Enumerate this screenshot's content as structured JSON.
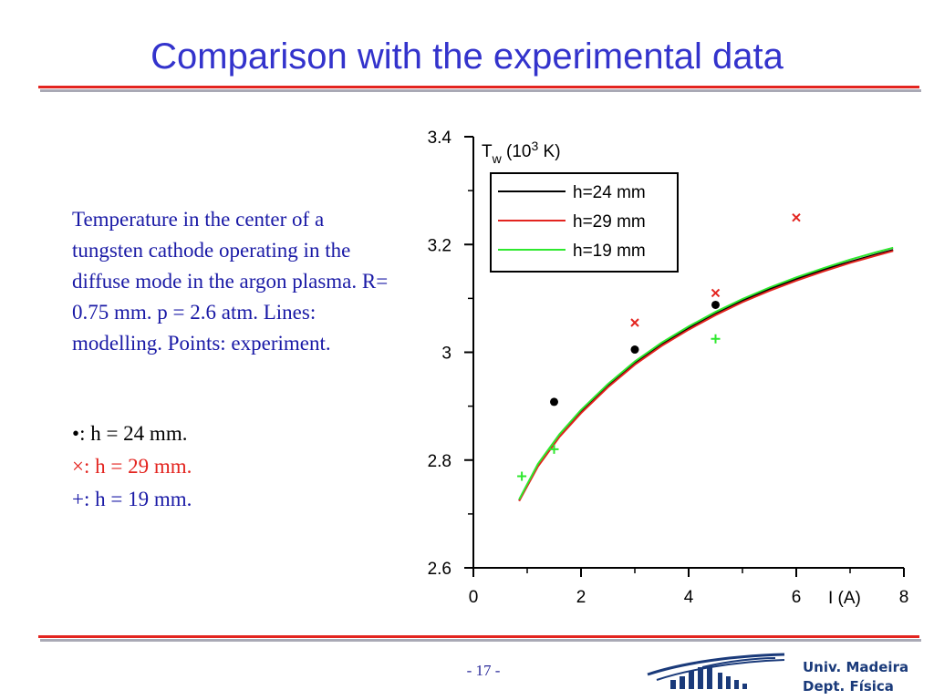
{
  "title": "Comparison with the experimental data",
  "description": "Temperature in the center of a tungsten cathode operating in the diffuse mode  in the argon plasma. R= 0.75 mm. p = 2.6 atm. Lines: modelling. Points: experiment.",
  "point_legend": [
    {
      "symbol": "•",
      "text": ":  h = 24 mm.",
      "color": "#000000"
    },
    {
      "symbol": "×",
      "text": ":  h = 29 mm.",
      "color": "#e3241f"
    },
    {
      "symbol": "+",
      "text": ":  h = 19 mm.",
      "color": "#1a1aa6"
    }
  ],
  "page_number": "- 17 -",
  "footer_org": [
    "Univ. Madeira",
    "Dept. Física"
  ],
  "colors": {
    "title": "#3333cc",
    "rule": "#e3241f",
    "accent_text": "#1a1aa6"
  },
  "chart_data": {
    "type": "line",
    "ylabel_main": "T",
    "ylabel_sub": "w",
    "ylabel_rest": " (10",
    "ylabel_sup": "3",
    "ylabel_end": " K)",
    "xlabel": "I (A)",
    "xlim": [
      0,
      8
    ],
    "ylim": [
      2.6,
      3.4
    ],
    "x_ticks": [
      "0",
      "2",
      "4",
      "6",
      "8"
    ],
    "y_ticks": [
      "2.6",
      "2.8",
      "3",
      "3.2",
      "3.4"
    ],
    "legend_placement": "top-center",
    "series": [
      {
        "name": "h=24 mm",
        "color": "#000000",
        "x": [
          0.85,
          1.2,
          1.6,
          2.0,
          2.5,
          3.0,
          3.5,
          4.0,
          4.5,
          5.0,
          5.5,
          6.0,
          6.5,
          7.0,
          7.5,
          7.8
        ],
        "y": [
          2.725,
          2.79,
          2.845,
          2.89,
          2.938,
          2.98,
          3.015,
          3.045,
          3.072,
          3.096,
          3.117,
          3.136,
          3.153,
          3.168,
          3.182,
          3.19
        ]
      },
      {
        "name": "h=29 mm",
        "color": "#e3241f",
        "x": [
          0.85,
          1.2,
          1.6,
          2.0,
          2.5,
          3.0,
          3.5,
          4.0,
          4.5,
          5.0,
          5.5,
          6.0,
          6.5,
          7.0,
          7.5,
          7.8
        ],
        "y": [
          2.724,
          2.788,
          2.843,
          2.887,
          2.935,
          2.977,
          3.012,
          3.042,
          3.069,
          3.093,
          3.114,
          3.133,
          3.15,
          3.166,
          3.18,
          3.188
        ]
      },
      {
        "name": "h=19 mm",
        "color": "#2ee82e",
        "x": [
          0.85,
          1.2,
          1.6,
          2.0,
          2.5,
          3.0,
          3.5,
          4.0,
          4.5,
          5.0,
          5.5,
          6.0,
          6.5,
          7.0,
          7.5,
          7.8
        ],
        "y": [
          2.727,
          2.793,
          2.848,
          2.893,
          2.941,
          2.983,
          3.018,
          3.048,
          3.075,
          3.099,
          3.12,
          3.139,
          3.156,
          3.172,
          3.186,
          3.194
        ]
      }
    ],
    "points": [
      {
        "series": "h=24 mm",
        "marker": "dot",
        "color": "#000000",
        "x": [
          1.5,
          3.0,
          4.5
        ],
        "y": [
          2.908,
          3.005,
          3.088
        ]
      },
      {
        "series": "h=29 mm",
        "marker": "x",
        "color": "#e3241f",
        "x": [
          3.0,
          4.5,
          6.0
        ],
        "y": [
          3.055,
          3.11,
          3.25
        ]
      },
      {
        "series": "h=19 mm",
        "marker": "plus",
        "color": "#2ee82e",
        "x": [
          0.9,
          1.5,
          4.5
        ],
        "y": [
          2.77,
          2.82,
          3.025
        ]
      }
    ]
  }
}
